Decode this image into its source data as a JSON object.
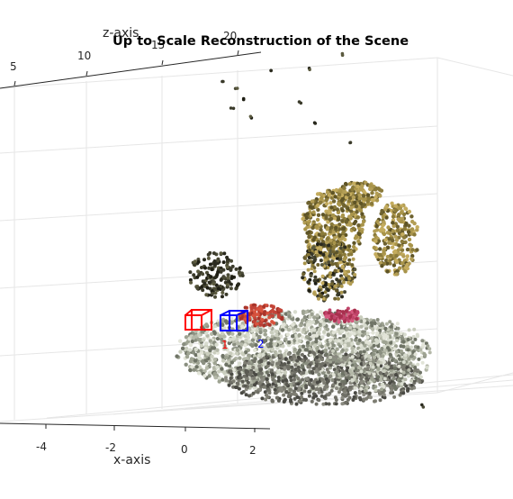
{
  "chart_data": {
    "type": "scatter",
    "title": "Up to Scale Reconstruction of the Scene",
    "xlabel": "x-axis",
    "zlabel": "z-axis",
    "x_ticks": [
      "-4",
      "-2",
      "0",
      "2"
    ],
    "z_ticks": [
      "5",
      "10",
      "15",
      "20"
    ],
    "grid": true,
    "cameras": [
      {
        "label": "1",
        "color": "#ff0000"
      },
      {
        "label": "2",
        "color": "#0000ff"
      }
    ]
  }
}
